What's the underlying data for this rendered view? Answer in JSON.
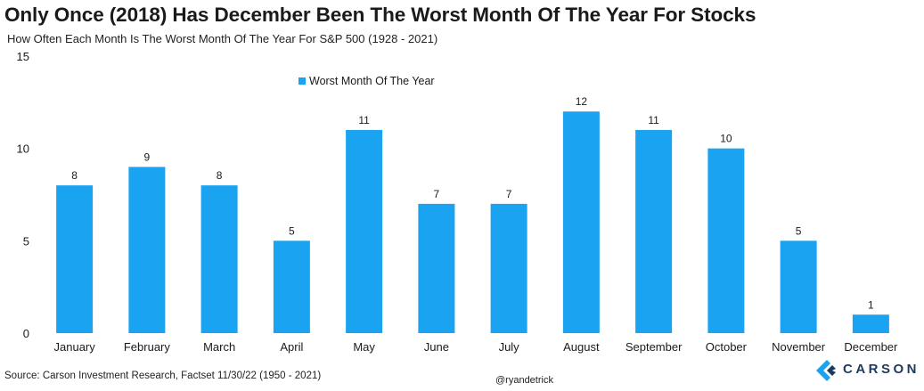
{
  "title": "Only Once (2018) Has December Been The Worst Month Of The Year For Stocks",
  "subtitle": "How Often Each Month  Is The Worst Month  Of The Year For S&P 500 (1928 - 2021)",
  "source": "Source: Carson Investment Research, Factset 11/30/22 (1950 - 2021)",
  "handle": "@ryandetrick",
  "logo_text": "CARSON",
  "colors": {
    "bar": "#1aa3f0",
    "text": "#1a1a1a",
    "logo": "#1e3a5f"
  },
  "chart_data": {
    "type": "bar",
    "categories": [
      "January",
      "February",
      "March",
      "April",
      "May",
      "June",
      "July",
      "August",
      "September",
      "October",
      "November",
      "December"
    ],
    "series": [
      {
        "name": "Worst Month Of The Year",
        "values": [
          8,
          9,
          8,
          5,
          11,
          7,
          7,
          12,
          11,
          10,
          5,
          1
        ]
      }
    ],
    "ylim": [
      0,
      15
    ],
    "yticks": [
      0,
      5,
      10,
      15
    ],
    "grid": false,
    "legend": "top-left"
  }
}
